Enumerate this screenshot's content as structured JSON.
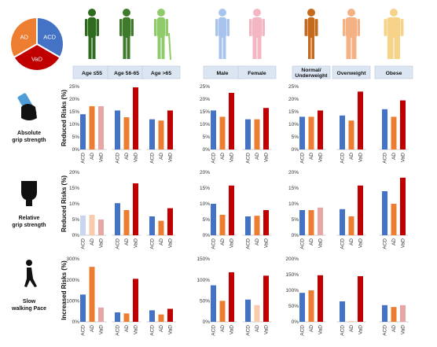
{
  "legend_pie": {
    "slices": [
      {
        "label": "ACD",
        "color": "#4472C4",
        "value": 1
      },
      {
        "label": "VaD",
        "color": "#C00000",
        "value": 1
      },
      {
        "label": "AD",
        "color": "#ED7D31",
        "value": 1
      }
    ]
  },
  "group_headers": [
    "Age ≤55",
    "Age 56-65",
    "Age >65",
    "Male",
    "Female",
    "Normal/ Underweight",
    "Overweight",
    "Obese"
  ],
  "row_labels": [
    {
      "line1": "Absolute",
      "line2": "grip strength",
      "icon": "grip-dynamometer-icon"
    },
    {
      "line1": "Relative",
      "line2": "grip strength",
      "icon": "raised-fist-icon"
    },
    {
      "line1": "Slow",
      "line2": "walking Pace",
      "icon": "walking-person-icon"
    }
  ],
  "y_axis_titles": [
    "Reduced Risks (%)",
    "Reduced Risks (%)",
    "Increased Risks (%)"
  ],
  "categories": [
    "ACD",
    "AD",
    "VaD"
  ],
  "colors": {
    "ACD": "#4472C4",
    "AD": "#ED7D31",
    "VaD": "#C00000",
    "ACD_faded": "#C9D7EE",
    "AD_faded": "#F8CBAD",
    "VaD_faded": "#E6A6A6"
  },
  "chart_data": [
    {
      "type": "bar",
      "row": "Absolute grip strength",
      "panel": "Age",
      "ylim": [
        0,
        25
      ],
      "ticks": [
        "0%",
        "5%",
        "10%",
        "15%",
        "20%",
        "25%"
      ],
      "categories": [
        "ACD",
        "AD",
        "VaD"
      ],
      "groups": [
        {
          "header": "Age ≤55",
          "values": [
            14,
            17.2,
            17.2
          ],
          "faded": [
            false,
            false,
            true
          ]
        },
        {
          "header": "Age 56-65",
          "values": [
            15.5,
            12.8,
            24.7
          ],
          "faded": [
            false,
            false,
            false
          ]
        },
        {
          "header": "Age >65",
          "values": [
            12,
            11.5,
            15.5
          ],
          "faded": [
            false,
            false,
            false
          ]
        }
      ]
    },
    {
      "type": "bar",
      "row": "Absolute grip strength",
      "panel": "Sex",
      "ylim": [
        0,
        25
      ],
      "ticks": [
        "0%",
        "5%",
        "10%",
        "15%",
        "20%",
        "25%"
      ],
      "categories": [
        "ACD",
        "AD",
        "VaD"
      ],
      "groups": [
        {
          "header": "Male",
          "values": [
            15.5,
            13,
            22.5
          ],
          "faded": [
            false,
            false,
            false
          ]
        },
        {
          "header": "Female",
          "values": [
            12,
            12,
            16.5
          ],
          "faded": [
            false,
            false,
            false
          ]
        }
      ]
    },
    {
      "type": "bar",
      "row": "Absolute grip strength",
      "panel": "BMI",
      "ylim": [
        0,
        25
      ],
      "ticks": [
        "0%",
        "5%",
        "10%",
        "15%",
        "20%",
        "25%"
      ],
      "categories": [
        "ACD",
        "AD",
        "VaD"
      ],
      "groups": [
        {
          "header": "Normal/ Underweight",
          "values": [
            13,
            13,
            15.5
          ],
          "faded": [
            false,
            false,
            false
          ]
        },
        {
          "header": "Overweight",
          "values": [
            13.5,
            11.5,
            23
          ],
          "faded": [
            false,
            false,
            false
          ]
        },
        {
          "header": "Obese",
          "values": [
            16,
            13,
            19.5
          ],
          "faded": [
            false,
            false,
            false
          ]
        }
      ]
    },
    {
      "type": "bar",
      "row": "Relative grip strength",
      "panel": "Age",
      "ylim": [
        0,
        20
      ],
      "ticks": [
        "0%",
        "5%",
        "10%",
        "15%",
        "20%"
      ],
      "categories": [
        "ACD",
        "AD",
        "VaD"
      ],
      "groups": [
        {
          "header": "Age ≤55",
          "values": [
            6.3,
            6.5,
            5
          ],
          "faded": [
            true,
            true,
            true
          ]
        },
        {
          "header": "Age 56-65",
          "values": [
            10.2,
            8,
            16.5
          ],
          "faded": [
            false,
            false,
            false
          ]
        },
        {
          "header": "Age >65",
          "values": [
            6,
            4.6,
            8.6
          ],
          "faded": [
            false,
            false,
            false
          ]
        }
      ]
    },
    {
      "type": "bar",
      "row": "Relative grip strength",
      "panel": "Sex",
      "ylim": [
        0,
        20
      ],
      "ticks": [
        "0%",
        "5%",
        "10%",
        "15%",
        "20%"
      ],
      "categories": [
        "ACD",
        "AD",
        "VaD"
      ],
      "groups": [
        {
          "header": "Male",
          "values": [
            10,
            6.5,
            15.8
          ],
          "faded": [
            false,
            false,
            false
          ]
        },
        {
          "header": "Female",
          "values": [
            6,
            6.2,
            8
          ],
          "faded": [
            false,
            false,
            false
          ]
        }
      ]
    },
    {
      "type": "bar",
      "row": "Relative grip strength",
      "panel": "BMI",
      "ylim": [
        0,
        20
      ],
      "ticks": [
        "0%",
        "5%",
        "10%",
        "15%",
        "20%"
      ],
      "categories": [
        "ACD",
        "AD",
        "VaD"
      ],
      "groups": [
        {
          "header": "Normal/ Underweight",
          "values": [
            8,
            8,
            8.8
          ],
          "faded": [
            false,
            false,
            true
          ]
        },
        {
          "header": "Overweight",
          "values": [
            8.3,
            6,
            15.8
          ],
          "faded": [
            false,
            false,
            false
          ]
        },
        {
          "header": "Obese",
          "values": [
            14,
            10,
            18.3
          ],
          "faded": [
            false,
            false,
            false
          ]
        }
      ]
    },
    {
      "type": "bar",
      "row": "Slow walking Pace",
      "panel": "Age",
      "ylim": [
        0,
        300
      ],
      "ticks": [
        "0%",
        "100%",
        "200%",
        "300%"
      ],
      "categories": [
        "ACD",
        "AD",
        "VaD"
      ],
      "groups": [
        {
          "header": "Age ≤55",
          "values": [
            130,
            262,
            68
          ],
          "faded": [
            false,
            false,
            true
          ]
        },
        {
          "header": "Age 56-65",
          "values": [
            45,
            40,
            205
          ],
          "faded": [
            false,
            false,
            false
          ]
        },
        {
          "header": "Age >65",
          "values": [
            55,
            35,
            62
          ],
          "faded": [
            false,
            false,
            false
          ]
        }
      ]
    },
    {
      "type": "bar",
      "row": "Slow walking Pace",
      "panel": "Sex",
      "ylim": [
        0,
        150
      ],
      "ticks": [
        "0%",
        "50%",
        "100%",
        "150%"
      ],
      "categories": [
        "ACD",
        "AD",
        "VaD"
      ],
      "groups": [
        {
          "header": "Male",
          "values": [
            87,
            50,
            118
          ],
          "faded": [
            false,
            false,
            false
          ]
        },
        {
          "header": "Female",
          "values": [
            53,
            40,
            110
          ],
          "faded": [
            false,
            true,
            false
          ]
        }
      ]
    },
    {
      "type": "bar",
      "row": "Slow walking Pace",
      "panel": "BMI",
      "ylim": [
        0,
        200
      ],
      "ticks": [
        "0%",
        "50%",
        "100%",
        "150%",
        "200%"
      ],
      "categories": [
        "ACD",
        "AD",
        "VaD"
      ],
      "groups": [
        {
          "header": "Normal/ Underweight",
          "values": [
            92,
            100,
            148
          ],
          "faded": [
            false,
            false,
            false
          ]
        },
        {
          "header": "Overweight",
          "values": [
            65,
            3,
            145
          ],
          "faded": [
            false,
            true,
            false
          ]
        },
        {
          "header": "Obese",
          "values": [
            53,
            47,
            53
          ],
          "faded": [
            false,
            false,
            true
          ]
        }
      ]
    }
  ]
}
